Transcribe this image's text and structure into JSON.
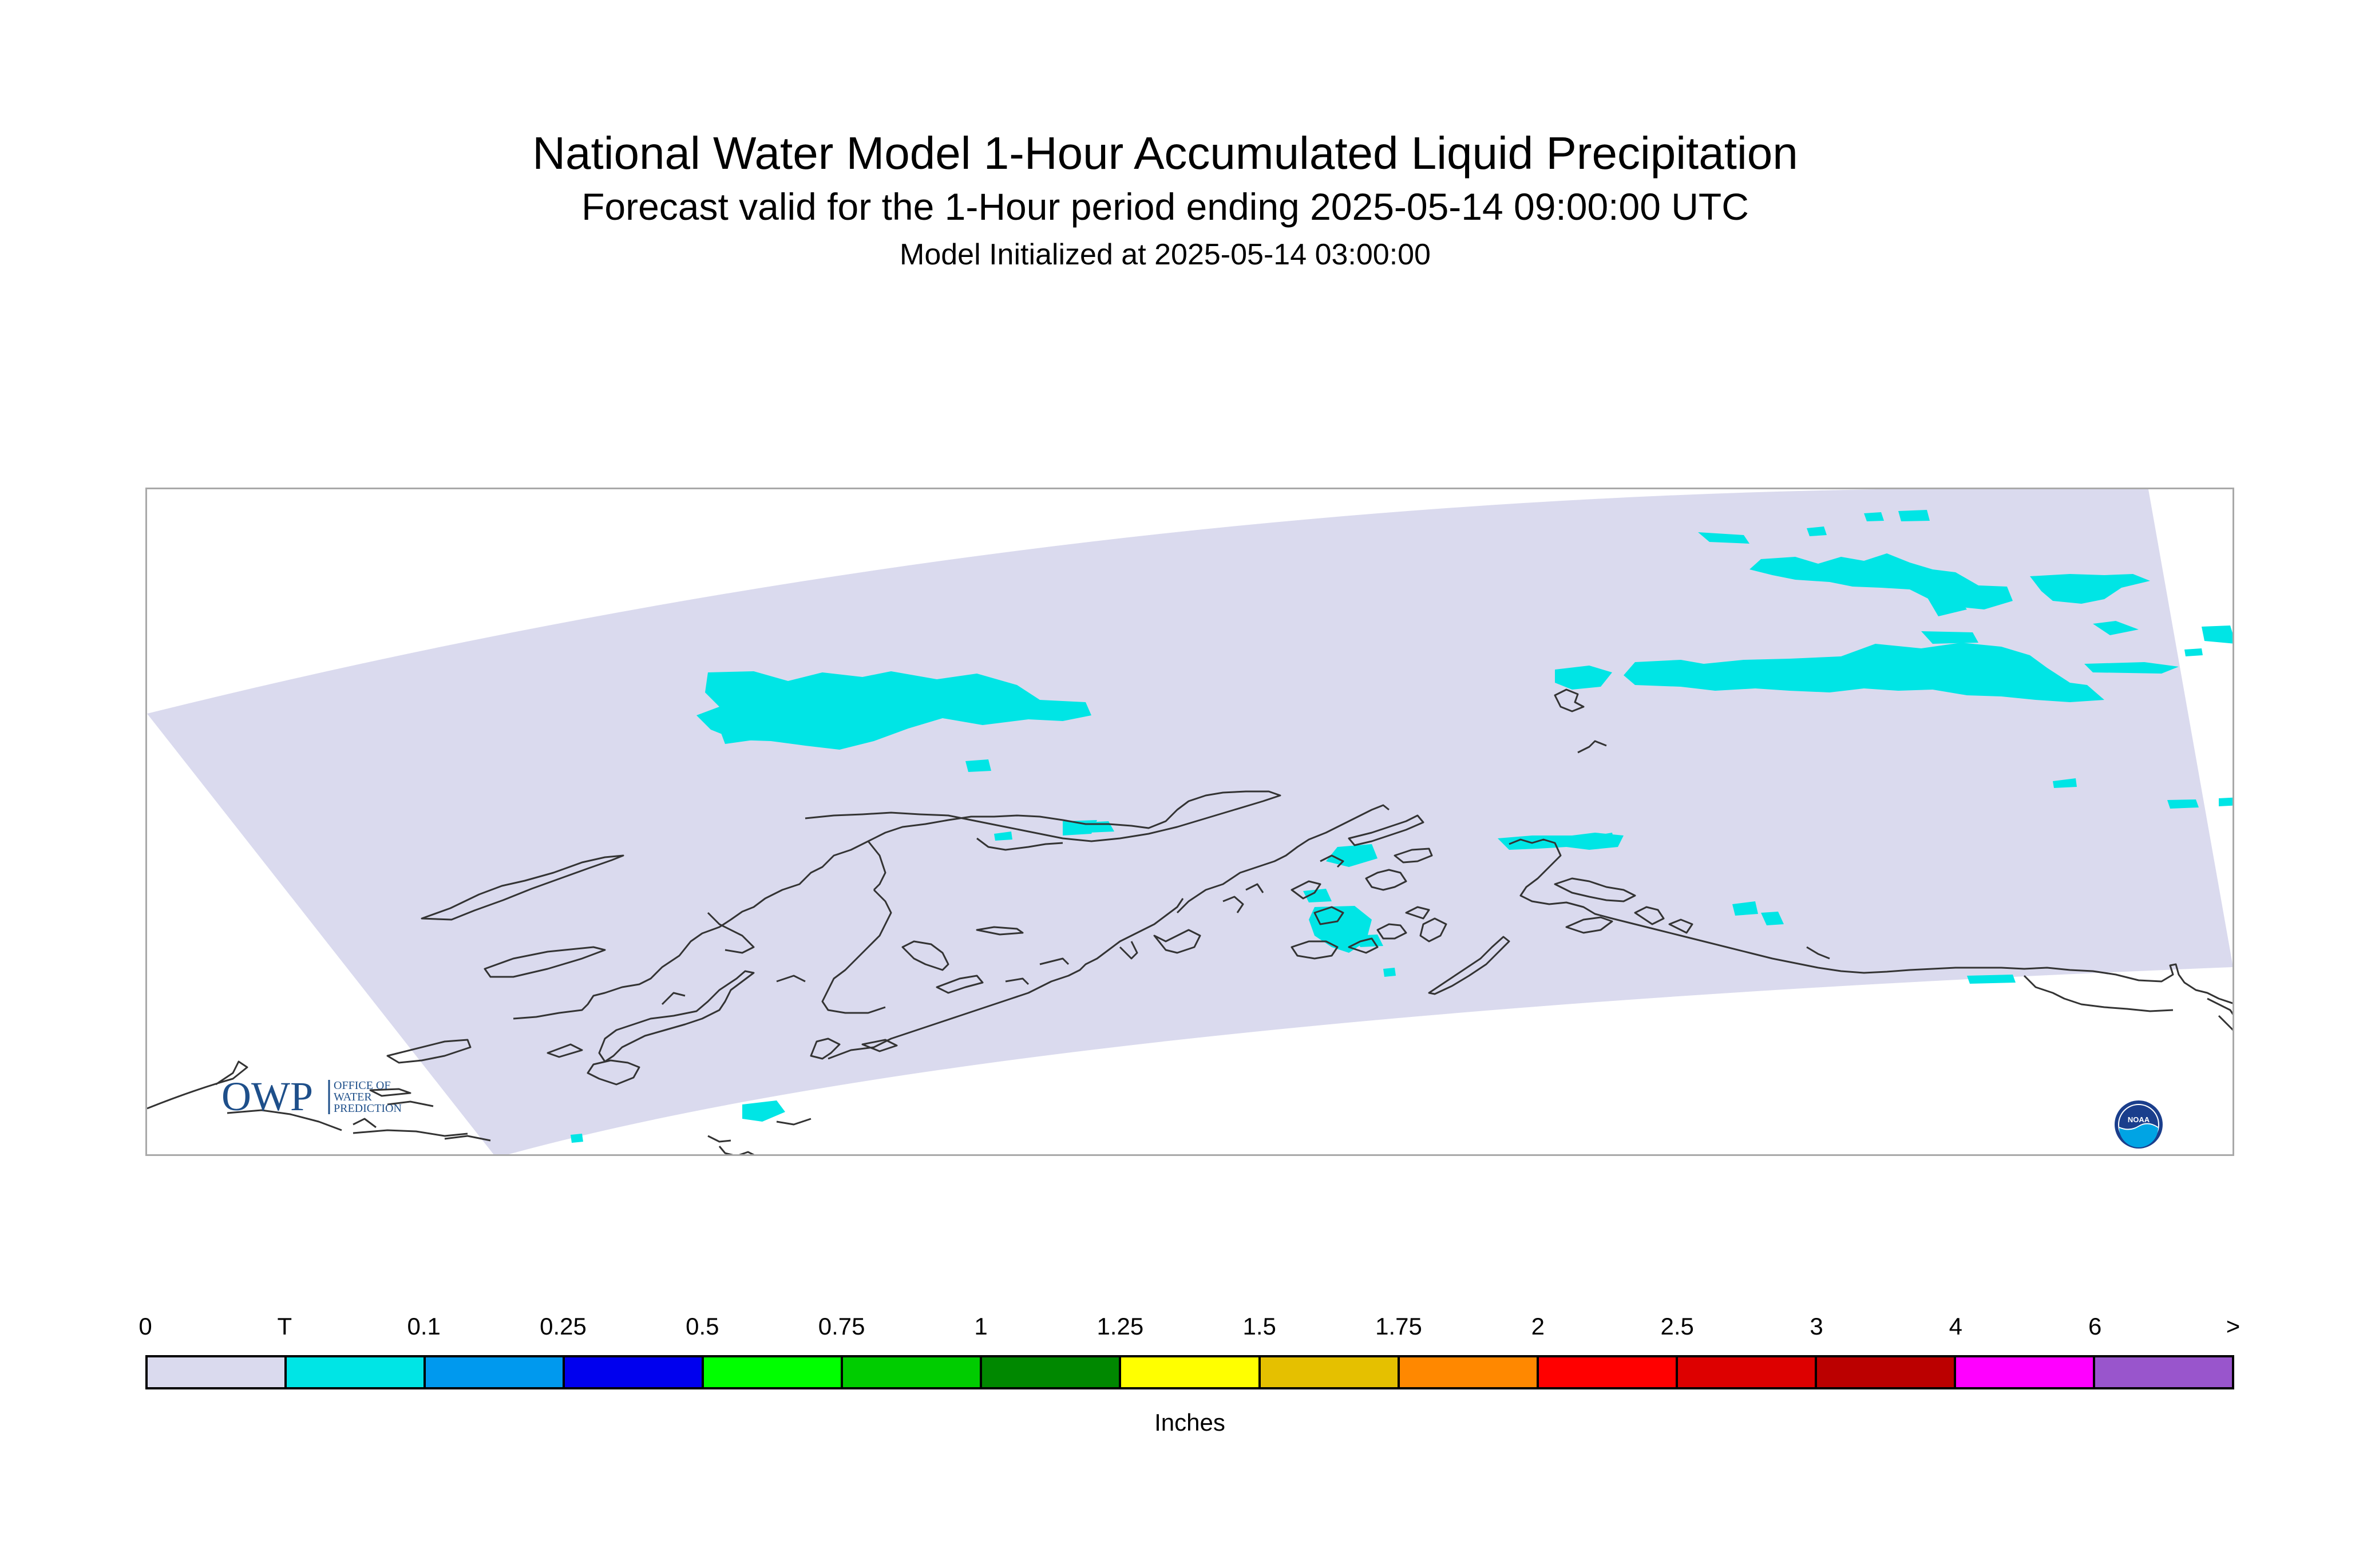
{
  "title": "National Water Model 1-Hour Accumulated Liquid Precipitation",
  "subtitle": "Forecast valid for the 1-Hour period ending 2025-05-14 09:00:00 UTC",
  "init_line": "Model Initialized at 2025-05-14 03:00:00",
  "logos": {
    "owp_text": "OWP",
    "owp_small_1": "OFFICE OF",
    "owp_small_2": "WATER",
    "owp_small_3": "PREDICTION",
    "noaa_text": "NOAA"
  },
  "map": {
    "domain_fill": "#dadaee",
    "coast_color": "#333333",
    "precip_color": "#00e5e5"
  },
  "legend": {
    "units": "Inches",
    "labels": [
      "0",
      "T",
      "0.1",
      "0.25",
      "0.5",
      "0.75",
      "1",
      "1.25",
      "1.5",
      "1.75",
      "2",
      "2.5",
      "3",
      "4",
      "6",
      ">"
    ],
    "colors": [
      "#dadaee",
      "#00e5e5",
      "#0099ee",
      "#0000ee",
      "#00ff00",
      "#00cc00",
      "#008800",
      "#ffff00",
      "#e5c000",
      "#ff8800",
      "#ff0000",
      "#dd0000",
      "#bb0000",
      "#ff00ff",
      "#9955cc"
    ]
  }
}
